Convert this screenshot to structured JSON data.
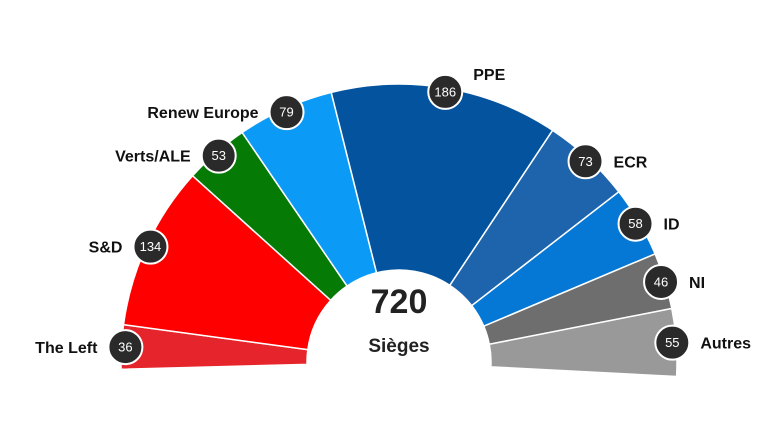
{
  "chart_data": {
    "type": "pie",
    "subtype": "parliament-hemicycle",
    "total": 720,
    "total_label": "Sièges",
    "segments": [
      {
        "name": "The Left",
        "value": 36,
        "color": "#e5242b"
      },
      {
        "name": "S&D",
        "value": 134,
        "color": "#fe0000"
      },
      {
        "name": "Verts/ALE",
        "value": 53,
        "color": "#057a05"
      },
      {
        "name": "Renew Europe",
        "value": 79,
        "color": "#0b9bf6"
      },
      {
        "name": "PPE",
        "value": 186,
        "color": "#03539e"
      },
      {
        "name": "ECR",
        "value": 73,
        "color": "#1e64ad"
      },
      {
        "name": "ID",
        "value": 58,
        "color": "#0578d6"
      },
      {
        "name": "NI",
        "value": 46,
        "color": "#6e6e6e"
      },
      {
        "name": "Autres",
        "value": 55,
        "color": "#999999"
      }
    ],
    "unassigned_color": "#9c9c9c"
  }
}
